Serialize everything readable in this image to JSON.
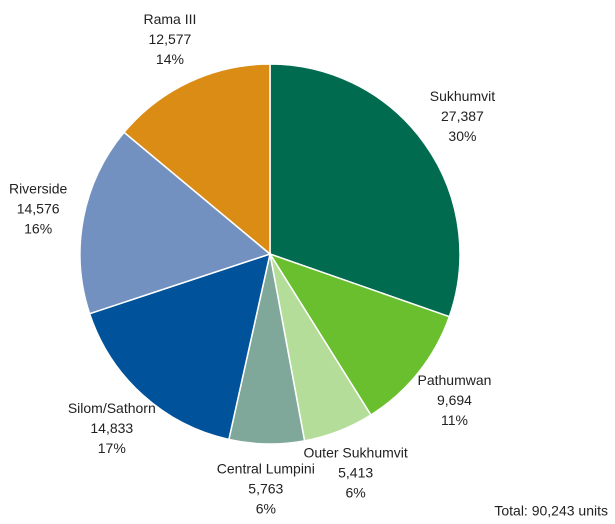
{
  "chart_data": {
    "type": "pie",
    "categories": [
      "Sukhumvit",
      "Pathumwan",
      "Outer Sukhumvit",
      "Central Lumpini",
      "Silom/Sathorn",
      "Riverside",
      "Rama III"
    ],
    "values": [
      27387,
      9694,
      5413,
      5763,
      14833,
      14576,
      12577
    ],
    "value_labels": [
      "27,387",
      "9,694",
      "5,413",
      "5,763",
      "14,833",
      "14,576",
      "12,577"
    ],
    "percentages": [
      30,
      11,
      6,
      6,
      17,
      16,
      14
    ],
    "percentage_labels": [
      "30%",
      "11%",
      "6%",
      "6%",
      "17%",
      "16%",
      "14%"
    ],
    "colors": [
      "#006b4e",
      "#6abf2e",
      "#b5dd9a",
      "#7fa89a",
      "#00539a",
      "#7291c0",
      "#db8c14"
    ],
    "note": "Total: 90,243 units"
  }
}
